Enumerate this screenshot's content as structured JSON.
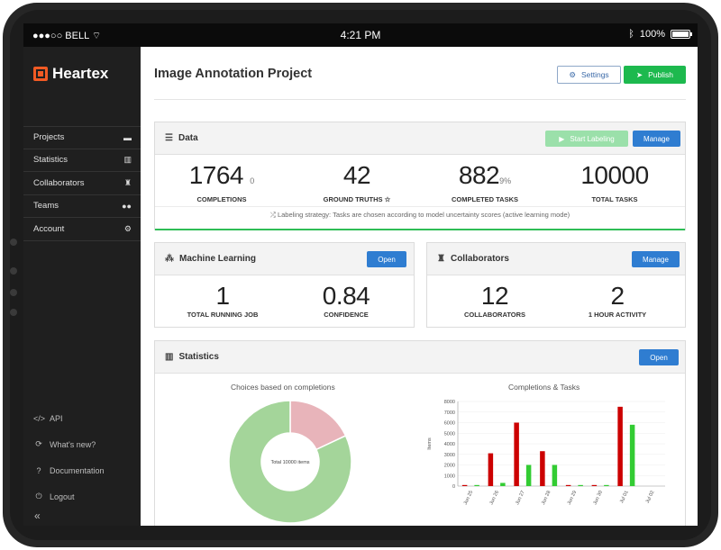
{
  "statusbar": {
    "carrier": "●●●○○ BELL",
    "time": "4:21 PM",
    "battery": "100%",
    "battery_level": 1.0
  },
  "brand": {
    "name": "Heartex",
    "accent": "#f15a24"
  },
  "sidebar": {
    "items": [
      {
        "label": "Projects",
        "icon": "folder-icon"
      },
      {
        "label": "Statistics",
        "icon": "bar-chart-icon"
      },
      {
        "label": "Collaborators",
        "icon": "user-icon"
      },
      {
        "label": "Teams",
        "icon": "users-icon"
      },
      {
        "label": "Account",
        "icon": "gear-icon"
      }
    ],
    "bottom_items": [
      {
        "label": "API",
        "icon": "code-icon"
      },
      {
        "label": "What's new?",
        "icon": "refresh-icon"
      },
      {
        "label": "Documentation",
        "icon": "question-icon"
      },
      {
        "label": "Logout",
        "icon": "power-icon"
      }
    ],
    "collapse": "«"
  },
  "header": {
    "title": "Image Annotation Project",
    "settings_label": "Settings",
    "publish_label": "Publish"
  },
  "data_card": {
    "title": "Data",
    "start_labeling_label": "Start Labeling",
    "manage_label": "Manage",
    "stats": [
      {
        "value": "1764",
        "suffix": "0",
        "label": "COMPLETIONS"
      },
      {
        "value": "42",
        "suffix": "",
        "label": "GROUND TRUTHS ☆"
      },
      {
        "value": "882",
        "suffix": "9%",
        "label": "COMPLETED TASKS"
      },
      {
        "value": "10000",
        "suffix": "",
        "label": "TOTAL TASKS"
      }
    ],
    "strategy": "Labeling strategy: Tasks are chosen according to model uncertainty scores (active learning mode)"
  },
  "ml_card": {
    "title": "Machine Learning",
    "open_label": "Open",
    "stats": [
      {
        "value": "1",
        "label": "TOTAL RUNNING JOB"
      },
      {
        "value": "0.84",
        "label": "CONFIDENCE"
      }
    ]
  },
  "collab_card": {
    "title": "Collaborators",
    "manage_label": "Manage",
    "stats": [
      {
        "value": "12",
        "label": "COLLABORATORS"
      },
      {
        "value": "2",
        "label": "1 HOUR ACTIVITY"
      }
    ]
  },
  "stats_card": {
    "title": "Statistics",
    "open_label": "Open"
  },
  "chart_data": [
    {
      "type": "pie",
      "title": "Choices based on completions",
      "center_label": "Total 10000 items",
      "slices": [
        {
          "value": 0.18,
          "color": "#e8b4ba"
        },
        {
          "value": 0.82,
          "color": "#a4d59a"
        }
      ]
    },
    {
      "type": "bar",
      "title": "Completions & Tasks",
      "xlabel": "Time",
      "ylabel": "Items",
      "ylim": [
        0,
        8000
      ],
      "yticks": [
        "0",
        "1000",
        "2000",
        "3000",
        "4000",
        "5000",
        "6000",
        "7000",
        "8000"
      ],
      "categories": [
        "Jun 25",
        "Jun 26",
        "Jun 27",
        "Jun 28",
        "Jun 29",
        "Jun 30",
        "Jul 01",
        "Jul 02"
      ],
      "series": [
        {
          "color": "#cc0000",
          "values": [
            100,
            3100,
            6000,
            3300,
            100,
            100,
            7500,
            0
          ]
        },
        {
          "color": "#33cc33",
          "values": [
            100,
            300,
            2000,
            2000,
            100,
            100,
            5800,
            0
          ]
        }
      ]
    }
  ]
}
